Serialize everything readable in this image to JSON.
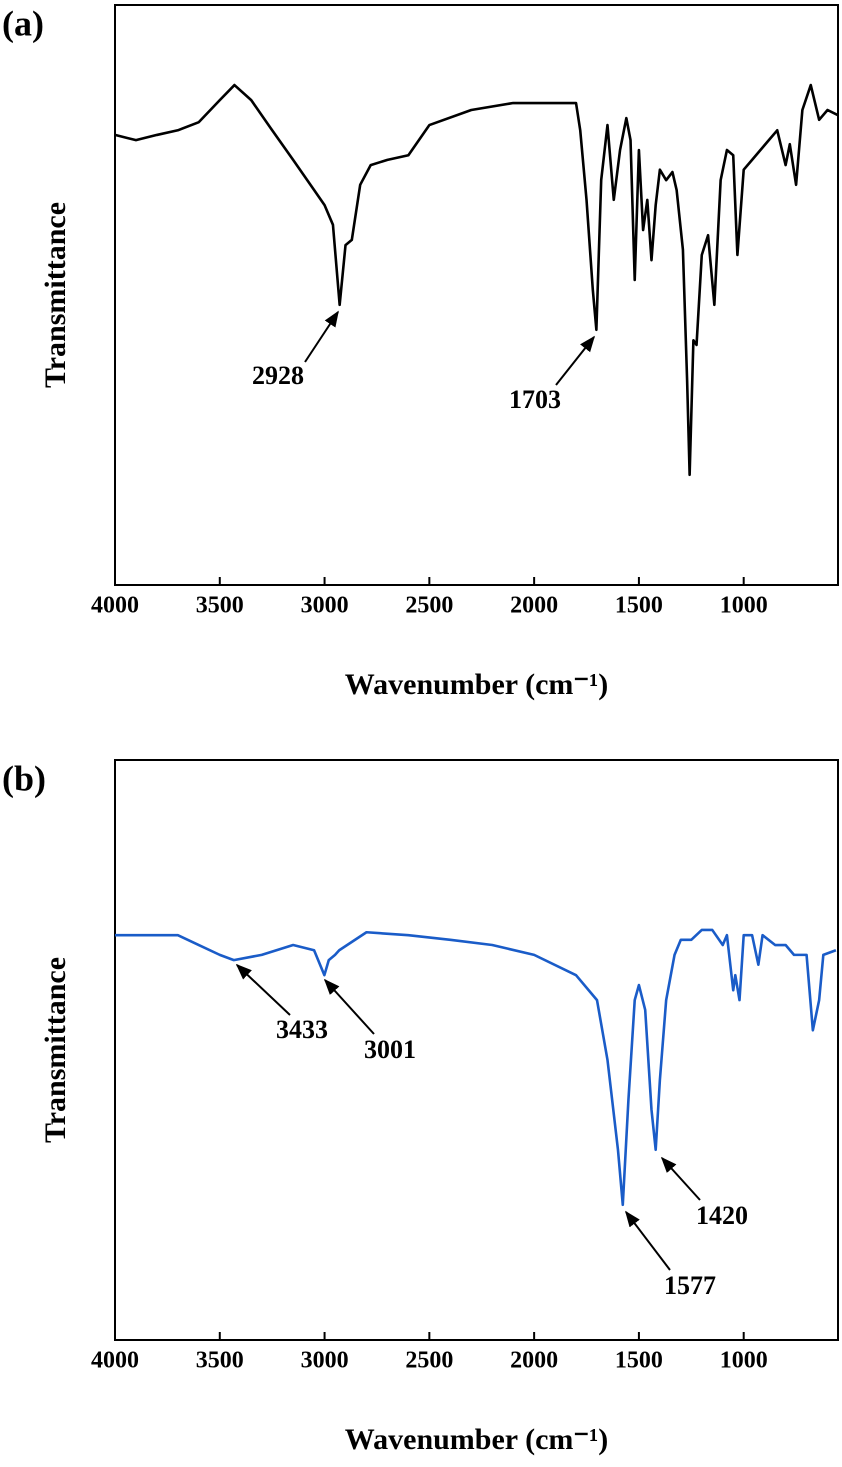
{
  "chart_data": [
    {
      "type": "line",
      "panel_label": "(a)",
      "x_label": "Wavenumber (cm⁻¹)",
      "y_label": "Transmittance",
      "xlim": [
        4000,
        550
      ],
      "ylim": [
        0,
        100
      ],
      "xticks": [
        4000,
        3500,
        3000,
        2500,
        2000,
        1500,
        1000
      ],
      "x": [
        4000,
        3900,
        3800,
        3700,
        3600,
        3500,
        3430,
        3350,
        3250,
        3150,
        3050,
        3000,
        2960,
        2928,
        2900,
        2870,
        2830,
        2780,
        2700,
        2600,
        2500,
        2300,
        2100,
        1800,
        1780,
        1750,
        1720,
        1703,
        1680,
        1650,
        1620,
        1590,
        1560,
        1540,
        1520,
        1500,
        1480,
        1460,
        1440,
        1420,
        1400,
        1370,
        1340,
        1320,
        1290,
        1270,
        1258,
        1240,
        1225,
        1200,
        1170,
        1140,
        1110,
        1080,
        1050,
        1030,
        1000,
        960,
        920,
        880,
        840,
        800,
        780,
        750,
        720,
        680,
        640,
        600,
        550
      ],
      "series": [
        {
          "color": "#000000",
          "values": [
            77.6,
            76.7,
            77.6,
            78.4,
            79.8,
            83.6,
            86.2,
            83.6,
            78.4,
            73.3,
            68.1,
            65.5,
            62.1,
            48.3,
            58.6,
            59.5,
            69.0,
            72.4,
            73.3,
            74.1,
            79.3,
            81.9,
            83.1,
            83.1,
            78.4,
            66.4,
            50.9,
            44.0,
            69.8,
            79.3,
            66.4,
            75.0,
            80.5,
            76.7,
            52.6,
            75.0,
            61.2,
            66.4,
            56.0,
            65.5,
            71.6,
            69.8,
            71.2,
            68.1,
            57.8,
            35.3,
            19.0,
            42.2,
            41.4,
            56.9,
            60.3,
            48.3,
            69.8,
            75.0,
            74.1,
            56.9,
            71.6,
            73.3,
            75.0,
            76.7,
            78.4,
            72.4,
            76.0,
            69.0,
            81.9,
            86.2,
            80.2,
            81.9,
            81.0
          ]
        }
      ],
      "annotations": [
        {
          "text": "2928"
        },
        {
          "text": "1703"
        }
      ]
    },
    {
      "type": "line",
      "panel_label": "(b)",
      "x_label": "Wavenumber (cm⁻¹)",
      "y_label": "Transmittance",
      "xlim": [
        4000,
        550
      ],
      "ylim": [
        0,
        100
      ],
      "xticks": [
        4000,
        3500,
        3000,
        2500,
        2000,
        1500,
        1000
      ],
      "x": [
        4000,
        3700,
        3600,
        3500,
        3433,
        3300,
        3150,
        3050,
        3001,
        2980,
        2950,
        2930,
        2800,
        2600,
        2400,
        2200,
        2000,
        1800,
        1700,
        1650,
        1600,
        1577,
        1550,
        1520,
        1500,
        1470,
        1440,
        1420,
        1400,
        1370,
        1330,
        1300,
        1250,
        1200,
        1150,
        1100,
        1080,
        1050,
        1040,
        1020,
        1000,
        960,
        930,
        910,
        850,
        800,
        760,
        700,
        670,
        655,
        640,
        620,
        560
      ],
      "series": [
        {
          "color": "#1a5cc8",
          "values": [
            69.8,
            69.8,
            68.1,
            66.4,
            65.5,
            66.4,
            68.1,
            67.2,
            62.9,
            65.5,
            66.4,
            67.2,
            70.3,
            69.8,
            69.0,
            68.1,
            66.4,
            62.9,
            58.6,
            48.3,
            32.8,
            23.3,
            41.4,
            58.6,
            61.2,
            56.9,
            39.7,
            32.8,
            44.8,
            58.6,
            66.4,
            69.0,
            69.0,
            70.7,
            70.7,
            68.1,
            69.8,
            60.3,
            62.9,
            58.6,
            69.8,
            69.8,
            64.7,
            69.8,
            68.1,
            68.1,
            66.4,
            66.4,
            53.4,
            56.0,
            58.6,
            66.4,
            67.2
          ]
        }
      ],
      "annotations": [
        {
          "text": "3433"
        },
        {
          "text": "3001"
        },
        {
          "text": "1420"
        },
        {
          "text": "1577"
        }
      ]
    }
  ]
}
